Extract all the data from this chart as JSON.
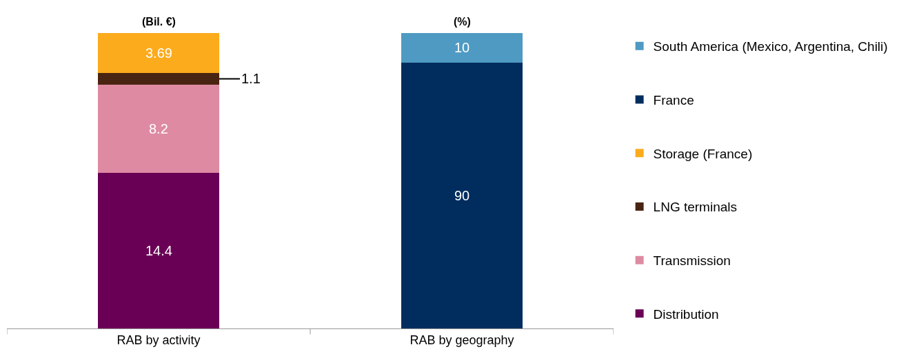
{
  "chart_data": {
    "type": "bar",
    "stacked": true,
    "categories": [
      "RAB by activity",
      "RAB by geography"
    ],
    "series": [
      {
        "name": "Distribution",
        "color": "#6a0056",
        "values": [
          14.4,
          null
        ]
      },
      {
        "name": "Transmission",
        "color": "#de8aa3",
        "values": [
          8.2,
          null
        ]
      },
      {
        "name": "LNG terminals",
        "color": "#4a2412",
        "values": [
          1.1,
          null
        ]
      },
      {
        "name": "Storage (France)",
        "color": "#fcab1c",
        "values": [
          3.69,
          null
        ]
      },
      {
        "name": "France",
        "color": "#002d5e",
        "values": [
          null,
          90
        ],
        "axis": "y2"
      },
      {
        "name": "South America (Mexico, Argentina, Chili)",
        "color": "#4e9ac2",
        "values": [
          null,
          10
        ],
        "axis": "y2"
      }
    ],
    "ylim": [
      0,
      27.39
    ],
    "y2lim": [
      0,
      100
    ],
    "tick_labels": "x",
    "data_labels": true,
    "legend": "right",
    "annotations": [
      "(Bil. €)",
      "(%)"
    ]
  }
}
